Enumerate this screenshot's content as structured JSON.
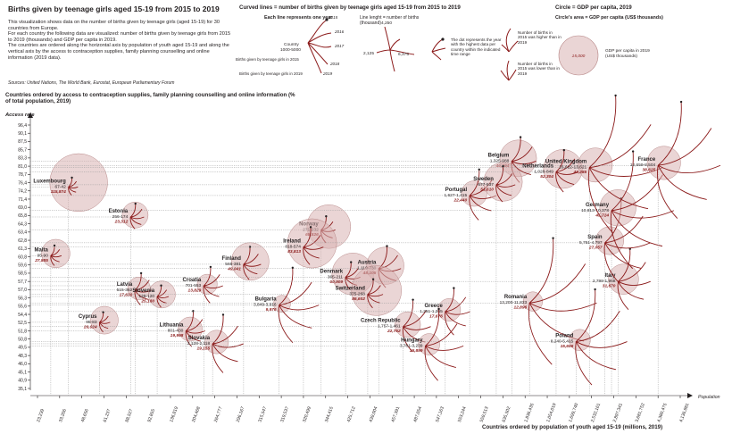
{
  "header": {
    "title": "Births given by teenage girls aged 15-19 from 2015 to 2019",
    "intro": [
      "This  visualization shows data on the number of births given by teenage girls (aged 15-19) for 30 countries from Europe.",
      "For each country the following data are visualized: number of births given by teenage girls from 2015 to 2019 (thousands) and GDP per capita in 2019.",
      "The countries are ordered along the horizontal axis by population of youth aged 15-19 and along the vertical axis by the access to contraception supplies, family planning counselling and online information (2019 data)."
    ],
    "sources": "Sources: United Nations, The World Bank, Eurostat, European Parliamentary Forum"
  },
  "legend": {
    "curved_title": "Curved lines = number of births given by teenage girls aged 15-19 from 2015 to 2019",
    "each_line": "Each line represents one year",
    "line_length": "Line lenght = number of births (thousand)",
    "years": [
      "2015",
      "2016",
      "2017",
      "2018",
      "2019"
    ],
    "country_label": "Country",
    "country_range": "1000-5000",
    "births_2015": "Births given by teenage girls in 2015",
    "births_2019": "Births given by teenage girls in 2019",
    "val_4250": "4,250",
    "val_2125": "2,125",
    "val_6375": "6,375",
    "dot_text": "The dot represents the year with the highest data per country within the indicated time range",
    "higher_text": "Number of births in 2015 was higher than in 2019",
    "lower_text": "Number of births in 2015 was lower than in 2019",
    "circle_title": "Circle = GDP per capita, 2019",
    "circle_area": "Circle's area = GDP per capita (US$ thousands)",
    "circle_value": "15,000",
    "circle_text": "GDP per capita in 2019 (US$ thousands)"
  },
  "colors": {
    "accent": "#8b1a1a",
    "circle_fill": "#d9b3b3",
    "circle_stroke": "#b98a8a",
    "grid": "#999999",
    "text": "#231f20"
  },
  "chart_data": {
    "type": "scatter",
    "title": "Births given by teenage girls aged 15-19 from 2015 to 2019",
    "ylabel": "Countries ordered by access to contraception supplies, family planning counselling and online information (% of total population, 2019)",
    "ylabel_short": "Access rate",
    "xlabel": "Countries ordered by population of youth aged 15-19 (millions, 2019)",
    "xlabel_short": "Population",
    "y_ticks": [
      "96,4",
      "90,1",
      "87,5",
      "85,7",
      "83,3",
      "81,0",
      "78,7",
      "76,4",
      "74,2",
      "71,4",
      "69,0",
      "65,8",
      "64,3",
      "63,4",
      "62,8",
      "61,3",
      "60,8",
      "59,6",
      "58,5",
      "57,7",
      "57,0",
      "56,3",
      "55,6",
      "54,4",
      "52,5",
      "51,8",
      "50,8",
      "49,5",
      "48,3",
      "46,0",
      "45,1",
      "40,9",
      "35,1"
    ],
    "x_ticks": [
      "23,239",
      "33,206",
      "48,656",
      "61,237",
      "88,527",
      "92,855",
      "136,819",
      "204,468",
      "264,777",
      "296,167",
      "315,547",
      "319,537",
      "320,499",
      "344,415",
      "425,712",
      "439,004",
      "457,391",
      "487,054",
      "547,163",
      "553,244",
      "559,513",
      "635,502",
      "1,836,435",
      "1,054,019",
      "1,699,740",
      "2,532,161",
      "2,897,341",
      "3,681,752",
      "4,380,475",
      "4,136,881"
    ],
    "points": [
      {
        "country": "Belgium",
        "births": "1,325-988",
        "gdp": "46,594",
        "births_2015": 1325,
        "births_2019": 988,
        "gdp_value": 46594,
        "access": 88.0
      },
      {
        "country": "Luxembourg",
        "births": "67-42",
        "gdp": "115,874",
        "births_2015": 67,
        "births_2019": 42,
        "gdp_value": 115874,
        "access": 82.0
      },
      {
        "country": "Estonia",
        "births": "256-174",
        "gdp": "23,312",
        "births_2015": 256,
        "births_2019": 174,
        "gdp_value": 23312,
        "access": 75.0
      },
      {
        "country": "Malta",
        "births": "95-90",
        "gdp": "27,885",
        "births_2015": 95,
        "births_2019": 90,
        "gdp_value": 27885,
        "access": 66.0
      },
      {
        "country": "Finland",
        "births": "566-381",
        "gdp": "49,041",
        "births_2015": 566,
        "births_2019": 381,
        "gdp_value": 49041,
        "access": 64.0
      },
      {
        "country": "Norway",
        "births": "271-232",
        "gdp": "65,826",
        "births_2015": 271,
        "births_2019": 232,
        "gdp_value": 65826,
        "access": 72.0
      },
      {
        "country": "Ireland",
        "births": "818-574",
        "gdp": "83,813",
        "births_2015": 818,
        "births_2019": 574,
        "gdp_value": 83813,
        "access": 68.0
      },
      {
        "country": "Denmark",
        "births": "365-211",
        "gdp": "60,909",
        "births_2015": 365,
        "births_2019": 211,
        "gdp_value": 60909,
        "access": 61.0
      },
      {
        "country": "Austria",
        "births": "1,119-730",
        "gdp": "48,105",
        "births_2015": 1119,
        "births_2019": 730,
        "gdp_value": 48105,
        "access": 63.0
      },
      {
        "country": "Croatia",
        "births": "701-553",
        "gdp": "13,829",
        "births_2015": 701,
        "births_2019": 553,
        "gdp_value": 13829,
        "access": 59.0
      },
      {
        "country": "Latvia",
        "births": "515-362",
        "gdp": "17,630",
        "births_2015": 515,
        "births_2019": 362,
        "gdp_value": 17630,
        "access": 58.0
      },
      {
        "country": "Slovenia",
        "births": "129-120",
        "gdp": "25,180",
        "births_2015": 129,
        "births_2019": 120,
        "gdp_value": 25180,
        "access": 56.5
      },
      {
        "country": "Bulgaria",
        "births": "3,849-3,916",
        "gdp": "9,976",
        "births_2015": 3849,
        "births_2019": 3916,
        "gdp_value": 9976,
        "access": 54.5
      },
      {
        "country": "Switzerland",
        "births": "375-268",
        "gdp": "86,602",
        "births_2015": 375,
        "births_2019": 268,
        "gdp_value": 86602,
        "access": 57.0
      },
      {
        "country": "Cyprus",
        "births": "95-83",
        "gdp": "26,624",
        "births_2015": 95,
        "births_2019": 83,
        "gdp_value": 26624,
        "access": 50.5
      },
      {
        "country": "Lithuania",
        "births": "801-430",
        "gdp": "19,998",
        "births_2015": 801,
        "births_2019": 430,
        "gdp_value": 19998,
        "access": 48.5
      },
      {
        "country": "Slovakia",
        "births": "2,128-2,118",
        "gdp": "19,155",
        "births_2015": 2128,
        "births_2019": 2118,
        "gdp_value": 19155,
        "access": 45.5
      },
      {
        "country": "Czech Republic",
        "births": "1,757-1,461",
        "gdp": "22,762",
        "births_2015": 1757,
        "births_2019": 1461,
        "gdp_value": 22762,
        "access": 49.5
      },
      {
        "country": "Greece",
        "births": "1,251-1,265",
        "gdp": "17,676",
        "births_2015": 1251,
        "births_2019": 1265,
        "gdp_value": 17676,
        "access": 53.0
      },
      {
        "country": "Hungary",
        "births": "3,761-3,239",
        "gdp": "15,899",
        "births_2015": 3761,
        "births_2019": 3239,
        "gdp_value": 15899,
        "access": 45.0
      },
      {
        "country": "Portugal",
        "births": "1,627-1,415",
        "gdp": "22,440",
        "births_2015": 1627,
        "births_2019": 1415,
        "gdp_value": 22440,
        "access": 80.0
      },
      {
        "country": "Sweden",
        "births": "677-537",
        "gdp": "51,610",
        "births_2015": 677,
        "births_2019": 537,
        "gdp_value": 51610,
        "access": 82.5
      },
      {
        "country": "Netherlands",
        "births": "1,028-849",
        "gdp": "52,304",
        "births_2015": 1028,
        "births_2019": 849,
        "gdp_value": 52304,
        "access": 85.5
      },
      {
        "country": "Romania",
        "births": "13,200-11,823",
        "gdp": "12,896",
        "births_2015": 13200,
        "births_2019": 11823,
        "gdp_value": 12896,
        "access": 55.0
      },
      {
        "country": "Poland",
        "births": "8,240-5,415",
        "gdp": "15,656",
        "births_2015": 8240,
        "births_2019": 5415,
        "gdp_value": 15656,
        "access": 46.0
      },
      {
        "country": "Italy",
        "births": "2,798-1,968",
        "gdp": "31,670",
        "births_2015": 2798,
        "births_2019": 1968,
        "gdp_value": 31670,
        "access": 60.0
      },
      {
        "country": "Spain",
        "births": "5,751-4,797",
        "gdp": "27,057",
        "births_2015": 5751,
        "births_2019": 4797,
        "gdp_value": 27057,
        "access": 69.0
      },
      {
        "country": "Germany",
        "births": "10,813-10,378",
        "gdp": "45,724",
        "births_2015": 10813,
        "births_2019": 10378,
        "gdp_value": 45724,
        "access": 76.5
      },
      {
        "country": "United Kingdom",
        "births": "16,622-13,621",
        "gdp": "40,285",
        "births_2015": 16622,
        "births_2019": 13621,
        "gdp_value": 40285,
        "access": 86.5
      },
      {
        "country": "France",
        "births": "12,659-8,504",
        "gdp": "38,625",
        "births_2015": 12659,
        "births_2019": 8504,
        "gdp_value": 38625,
        "access": 87.0
      }
    ]
  }
}
